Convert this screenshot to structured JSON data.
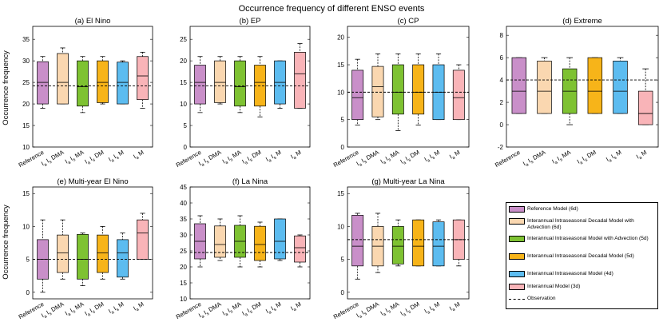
{
  "figure_title": "Occurrence frequency of different ENSO events",
  "ylabel": "Occurrence frequency",
  "categories": [
    {
      "text": "Reference",
      "sub": ""
    },
    {
      "text": "I DMA",
      "sub": "a s"
    },
    {
      "text": "I MA",
      "sub": "a s"
    },
    {
      "text": "I DM",
      "sub": "a s"
    },
    {
      "text": "I M",
      "sub": "a s"
    },
    {
      "text": "I M",
      "sub": "a"
    }
  ],
  "colors": [
    "#c98fc9",
    "#fad7b0",
    "#7ec232",
    "#f7b419",
    "#5cbcf0",
    "#f9b4b8"
  ],
  "legend": {
    "items": [
      {
        "label": "Reference Model (6d)"
      },
      {
        "label": "Interannual Intraseasonal Decadal Model with Advection (6d)"
      },
      {
        "label": "Interannual Intraseasonal Model with Advection (5d)"
      },
      {
        "label": "Interannual Intraseasonal Decadal Model (5d)"
      },
      {
        "label": "Interannual Intraseasonal Model (4d)"
      },
      {
        "label": "Interannual Model (3d)"
      }
    ],
    "observation_label": "Observation"
  },
  "chart_data": [
    {
      "type": "box",
      "title": "(a) El Nino",
      "ylim": [
        10,
        38
      ],
      "yticks": [
        10,
        15,
        20,
        25,
        30,
        35
      ],
      "observation": 24.2,
      "boxes": [
        {
          "lo": 19,
          "q1": 20,
          "med": 25,
          "q3": 29.8,
          "hi": 31
        },
        {
          "lo": 20,
          "q1": 20,
          "med": 25,
          "q3": 31.7,
          "hi": 33
        },
        {
          "lo": 18,
          "q1": 19.5,
          "med": 24,
          "q3": 30,
          "hi": 31
        },
        {
          "lo": 20,
          "q1": 20.3,
          "med": 25,
          "q3": 30,
          "hi": 31
        },
        {
          "lo": 20,
          "q1": 20,
          "med": 25,
          "q3": 29.7,
          "hi": 30
        },
        {
          "lo": 19,
          "q1": 21,
          "med": 26.5,
          "q3": 31,
          "hi": 32
        }
      ]
    },
    {
      "type": "box",
      "title": "(b) EP",
      "ylim": [
        0,
        28
      ],
      "yticks": [
        0,
        5,
        10,
        15,
        20,
        25
      ],
      "observation": 14.2,
      "boxes": [
        {
          "lo": 8,
          "q1": 10,
          "med": 15,
          "q3": 19,
          "hi": 21
        },
        {
          "lo": 10,
          "q1": 10.3,
          "med": 15,
          "q3": 20,
          "hi": 21
        },
        {
          "lo": 8,
          "q1": 9.5,
          "med": 14,
          "q3": 20,
          "hi": 21
        },
        {
          "lo": 7,
          "q1": 9.5,
          "med": 15,
          "q3": 19,
          "hi": 21
        },
        {
          "lo": 9,
          "q1": 10,
          "med": 15,
          "q3": 20,
          "hi": 20
        },
        {
          "lo": 9,
          "q1": 9,
          "med": 17,
          "q3": 22,
          "hi": 24
        }
      ]
    },
    {
      "type": "box",
      "title": "(c) CP",
      "ylim": [
        0,
        22
      ],
      "yticks": [
        0,
        5,
        10,
        15,
        20
      ],
      "observation": 10,
      "boxes": [
        {
          "lo": 4,
          "q1": 5,
          "med": 9,
          "q3": 14,
          "hi": 16
        },
        {
          "lo": 5,
          "q1": 5.5,
          "med": 11,
          "q3": 14.7,
          "hi": 17
        },
        {
          "lo": 3,
          "q1": 6,
          "med": 10,
          "q3": 15,
          "hi": 17
        },
        {
          "lo": 4,
          "q1": 6,
          "med": 10,
          "q3": 15,
          "hi": 17
        },
        {
          "lo": 5,
          "q1": 5,
          "med": 10,
          "q3": 15,
          "hi": 17
        },
        {
          "lo": 5,
          "q1": 5,
          "med": 9,
          "q3": 14,
          "hi": 15
        }
      ]
    },
    {
      "type": "box",
      "title": "(d) Extreme",
      "ylim": [
        -2,
        8.8
      ],
      "yticks": [
        -2,
        0,
        2,
        4,
        6,
        8
      ],
      "observation": 4,
      "boxes": [
        {
          "lo": 1,
          "q1": 1,
          "med": 3,
          "q3": 6,
          "hi": 6
        },
        {
          "lo": 1,
          "q1": 1,
          "med": 3,
          "q3": 5.7,
          "hi": 6
        },
        {
          "lo": 0,
          "q1": 1,
          "med": 3,
          "q3": 5,
          "hi": 6
        },
        {
          "lo": 1,
          "q1": 1,
          "med": 3,
          "q3": 6,
          "hi": 6
        },
        {
          "lo": 1,
          "q1": 1,
          "med": 3,
          "q3": 5.7,
          "hi": 6
        },
        {
          "lo": 0,
          "q1": 0,
          "med": 1,
          "q3": 3,
          "hi": 5
        }
      ]
    },
    {
      "type": "box",
      "title": "(e) Multi-year El Nino",
      "ylim": [
        -1,
        16
      ],
      "yticks": [
        0,
        5,
        10,
        15
      ],
      "observation": 5,
      "boxes": [
        {
          "lo": 0,
          "q1": 2,
          "med": 5,
          "q3": 8,
          "hi": 11
        },
        {
          "lo": 2,
          "q1": 3,
          "med": 6,
          "q3": 8.7,
          "hi": 11
        },
        {
          "lo": 1,
          "q1": 2,
          "med": 5,
          "q3": 8.8,
          "hi": 9
        },
        {
          "lo": 2,
          "q1": 3,
          "med": 6,
          "q3": 8.7,
          "hi": 10
        },
        {
          "lo": 2,
          "q1": 2.3,
          "med": 6,
          "q3": 8,
          "hi": 9
        },
        {
          "lo": 5,
          "q1": 5,
          "med": 9,
          "q3": 11,
          "hi": 12
        }
      ]
    },
    {
      "type": "box",
      "title": "(f) La Nina",
      "ylim": [
        10,
        45
      ],
      "yticks": [
        10,
        15,
        20,
        25,
        30,
        35,
        40,
        45
      ],
      "observation": 24.5,
      "boxes": [
        {
          "lo": 20,
          "q1": 22.5,
          "med": 28,
          "q3": 33.5,
          "hi": 36
        },
        {
          "lo": 22,
          "q1": 23,
          "med": 27,
          "q3": 32.8,
          "hi": 35
        },
        {
          "lo": 20,
          "q1": 23,
          "med": 28,
          "q3": 33,
          "hi": 36
        },
        {
          "lo": 20,
          "q1": 22,
          "med": 27,
          "q3": 32.7,
          "hi": 34
        },
        {
          "lo": 22,
          "q1": 22.5,
          "med": 28,
          "q3": 35,
          "hi": 35
        },
        {
          "lo": 20,
          "q1": 21.5,
          "med": 26,
          "q3": 29.7,
          "hi": 30
        }
      ]
    },
    {
      "type": "box",
      "title": "(g) Multi-year La Nina",
      "ylim": [
        -1,
        16
      ],
      "yticks": [
        0,
        5,
        10,
        15
      ],
      "observation": 8,
      "boxes": [
        {
          "lo": 2,
          "q1": 4,
          "med": 7,
          "q3": 11.7,
          "hi": 12
        },
        {
          "lo": 3,
          "q1": 4,
          "med": 7,
          "q3": 10,
          "hi": 12
        },
        {
          "lo": 4,
          "q1": 4.3,
          "med": 7,
          "q3": 10,
          "hi": 11
        },
        {
          "lo": 4,
          "q1": 4,
          "med": 7,
          "q3": 11,
          "hi": 11
        },
        {
          "lo": 4,
          "q1": 4,
          "med": 7,
          "q3": 10.7,
          "hi": 11
        },
        {
          "lo": 4,
          "q1": 5,
          "med": 8,
          "q3": 11,
          "hi": 11
        }
      ]
    }
  ]
}
